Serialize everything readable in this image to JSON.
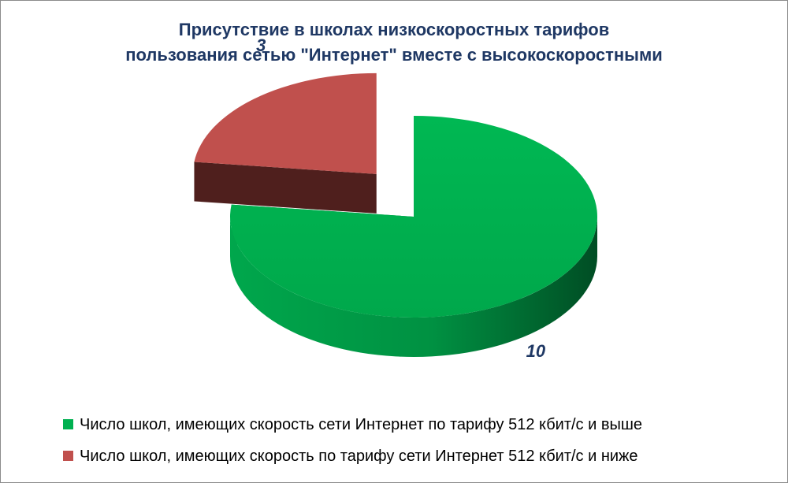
{
  "chart_data": {
    "type": "pie",
    "title_lines": [
      "Присутствие в школах низкоскоростных тарифов",
      "пользования сетью \"Интернет\" вместе с высокоскоростными"
    ],
    "categories": [
      "Число школ, имеющих скорость сети Интернет по тарифу 512 кбит/с и выше",
      "Число школ, имеющих скорость по тарифу сети Интернет 512 кбит/с и ниже"
    ],
    "values": [
      10,
      3
    ],
    "data_labels": [
      "10",
      "3"
    ],
    "colors": [
      "#00b050",
      "#c0504d"
    ],
    "side_colors": [
      "#006b32",
      "#4f1f1d"
    ],
    "legend_position": "bottom",
    "exploded": true,
    "three_d": true
  }
}
